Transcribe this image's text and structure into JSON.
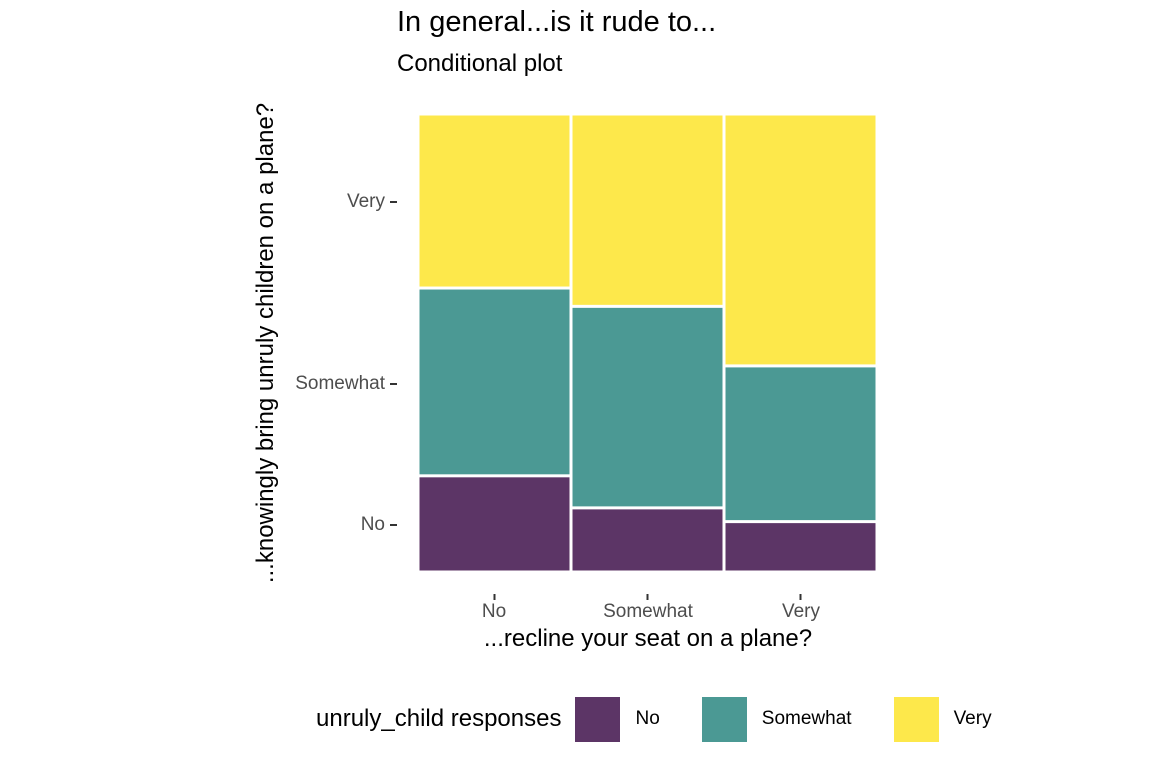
{
  "chart_data": {
    "type": "mosaic",
    "title": "In general...is it rude to...",
    "subtitle": "Conditional plot",
    "xlabel": "...recline your seat on a plane?",
    "ylabel": "...knowingly bring unruly children on a plane?",
    "categories": [
      "No",
      "Somewhat",
      "Very"
    ],
    "y_ticks": [
      "Very",
      "Somewhat",
      "No"
    ],
    "legend": {
      "title": "unruly_child responses",
      "placement": "bottom",
      "entries": [
        "No",
        "Somewhat",
        "Very"
      ]
    },
    "series": [
      {
        "name": "No",
        "color": "#5C3566",
        "values": [
          0.21,
          0.14,
          0.11
        ]
      },
      {
        "name": "Somewhat",
        "color": "#4B9994",
        "values": [
          0.41,
          0.44,
          0.34
        ]
      },
      {
        "name": "Very",
        "color": "#FDE84B",
        "values": [
          0.38,
          0.42,
          0.55
        ]
      }
    ],
    "column_widths": [
      0.333,
      0.333,
      0.333
    ]
  }
}
